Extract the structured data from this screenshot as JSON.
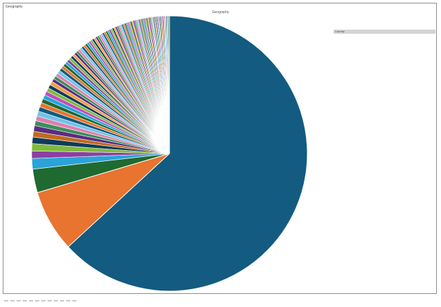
{
  "header": {
    "corner_label": "Geography"
  },
  "chart_data": {
    "type": "pie",
    "title": "Geography",
    "start_angle_deg": 0,
    "direction": "clockwise",
    "legend_position": "right",
    "legend_header": "Country",
    "slices": [
      {
        "value": 66.0,
        "color": "#135b80"
      },
      {
        "value": 7.6,
        "color": "#e8742f"
      },
      {
        "value": 2.9,
        "color": "#1f6a30"
      },
      {
        "value": 1.3,
        "color": "#2aa3d8"
      },
      {
        "value": 0.9,
        "color": "#8c3fa1"
      },
      {
        "value": 0.9,
        "color": "#7fba3e"
      },
      {
        "value": 0.8,
        "color": "#0f3b5a"
      },
      {
        "value": 0.7,
        "color": "#c26a1e"
      },
      {
        "value": 0.7,
        "color": "#5a2d82"
      },
      {
        "value": 0.6,
        "color": "#3d8f5a"
      },
      {
        "value": 0.6,
        "color": "#e07fb0"
      },
      {
        "value": 0.6,
        "color": "#6fc4e8"
      },
      {
        "value": 0.55,
        "color": "#135b80"
      },
      {
        "value": 0.55,
        "color": "#e8742f"
      },
      {
        "value": 0.5,
        "color": "#1f6a30"
      },
      {
        "value": 0.5,
        "color": "#2aa3d8"
      },
      {
        "value": 0.5,
        "color": "#c04dbe"
      },
      {
        "value": 0.45,
        "color": "#7fba3e"
      },
      {
        "value": 0.45,
        "color": "#0f3b5a"
      },
      {
        "value": 0.45,
        "color": "#f0a040"
      },
      {
        "value": 0.4,
        "color": "#5a2d82"
      },
      {
        "value": 0.4,
        "color": "#3d8f5a"
      },
      {
        "value": 0.4,
        "color": "#e07fb0"
      },
      {
        "value": 0.4,
        "color": "#6fc4e8"
      },
      {
        "value": 0.38,
        "color": "#135b80"
      },
      {
        "value": 0.36,
        "color": "#e8742f"
      },
      {
        "value": 0.35,
        "color": "#1f6a30"
      },
      {
        "value": 0.34,
        "color": "#2aa3d8"
      },
      {
        "value": 0.33,
        "color": "#8c3fa1"
      },
      {
        "value": 0.32,
        "color": "#7fba3e"
      },
      {
        "value": 0.31,
        "color": "#0f3b5a"
      },
      {
        "value": 0.3,
        "color": "#f0a040"
      },
      {
        "value": 0.3,
        "color": "#5a2d82"
      },
      {
        "value": 0.29,
        "color": "#3d8f5a"
      },
      {
        "value": 0.29,
        "color": "#e07fb0"
      },
      {
        "value": 0.28,
        "color": "#6fc4e8"
      },
      {
        "value": 0.28,
        "color": "#135b80"
      },
      {
        "value": 0.27,
        "color": "#e8742f"
      },
      {
        "value": 0.27,
        "color": "#1f6a30"
      },
      {
        "value": 0.26,
        "color": "#2aa3d8"
      },
      {
        "value": 0.26,
        "color": "#c04dbe"
      },
      {
        "value": 0.25,
        "color": "#7fba3e"
      },
      {
        "value": 0.25,
        "color": "#0f3b5a"
      },
      {
        "value": 0.25,
        "color": "#f0a040"
      },
      {
        "value": 0.24,
        "color": "#5a2d82"
      },
      {
        "value": 0.24,
        "color": "#3d8f5a"
      },
      {
        "value": 0.24,
        "color": "#e07fb0"
      },
      {
        "value": 0.23,
        "color": "#6fc4e8"
      },
      {
        "value": 0.23,
        "color": "#135b80"
      },
      {
        "value": 0.23,
        "color": "#e8742f"
      },
      {
        "value": 0.22,
        "color": "#1f6a30"
      },
      {
        "value": 0.22,
        "color": "#2aa3d8"
      },
      {
        "value": 0.22,
        "color": "#8c3fa1"
      },
      {
        "value": 0.21,
        "color": "#7fba3e"
      },
      {
        "value": 0.21,
        "color": "#0f3b5a"
      },
      {
        "value": 0.21,
        "color": "#f0a040"
      },
      {
        "value": 0.2,
        "color": "#5a2d82"
      },
      {
        "value": 0.2,
        "color": "#3d8f5a"
      },
      {
        "value": 0.2,
        "color": "#e07fb0"
      },
      {
        "value": 0.2,
        "color": "#6fc4e8"
      },
      {
        "value": 0.19,
        "color": "#135b80"
      },
      {
        "value": 0.19,
        "color": "#e8742f"
      },
      {
        "value": 0.19,
        "color": "#1f6a30"
      },
      {
        "value": 0.19,
        "color": "#2aa3d8"
      },
      {
        "value": 0.18,
        "color": "#c04dbe"
      },
      {
        "value": 0.18,
        "color": "#7fba3e"
      },
      {
        "value": 0.18,
        "color": "#0f3b5a"
      },
      {
        "value": 0.18,
        "color": "#f0a040"
      },
      {
        "value": 0.17,
        "color": "#5a2d82"
      },
      {
        "value": 0.17,
        "color": "#3d8f5a"
      },
      {
        "value": 0.17,
        "color": "#e07fb0"
      },
      {
        "value": 0.17,
        "color": "#6fc4e8"
      },
      {
        "value": 0.16,
        "color": "#135b80"
      },
      {
        "value": 0.16,
        "color": "#e8742f"
      },
      {
        "value": 0.16,
        "color": "#1f6a30"
      },
      {
        "value": 0.16,
        "color": "#2aa3d8"
      },
      {
        "value": 0.15,
        "color": "#8c3fa1"
      },
      {
        "value": 0.15,
        "color": "#7fba3e"
      },
      {
        "value": 0.15,
        "color": "#0f3b5a"
      },
      {
        "value": 0.15,
        "color": "#f0a040"
      },
      {
        "value": 0.15,
        "color": "#5a2d82"
      },
      {
        "value": 0.14,
        "color": "#3d8f5a"
      },
      {
        "value": 0.14,
        "color": "#e07fb0"
      },
      {
        "value": 0.14,
        "color": "#6fc4e8"
      },
      {
        "value": 0.14,
        "color": "#135b80"
      },
      {
        "value": 0.14,
        "color": "#e8742f"
      },
      {
        "value": 0.13,
        "color": "#1f6a30"
      },
      {
        "value": 0.13,
        "color": "#2aa3d8"
      },
      {
        "value": 0.13,
        "color": "#c04dbe"
      },
      {
        "value": 0.13,
        "color": "#7fba3e"
      },
      {
        "value": 0.13,
        "color": "#0f3b5a"
      },
      {
        "value": 0.12,
        "color": "#f0a040"
      },
      {
        "value": 0.12,
        "color": "#5a2d82"
      },
      {
        "value": 0.12,
        "color": "#3d8f5a"
      },
      {
        "value": 0.12,
        "color": "#e07fb0"
      },
      {
        "value": 0.12,
        "color": "#6fc4e8"
      },
      {
        "value": 0.11,
        "color": "#135b80"
      },
      {
        "value": 0.11,
        "color": "#e8742f"
      },
      {
        "value": 0.11,
        "color": "#1f6a30"
      },
      {
        "value": 0.11,
        "color": "#2aa3d8"
      }
    ]
  }
}
